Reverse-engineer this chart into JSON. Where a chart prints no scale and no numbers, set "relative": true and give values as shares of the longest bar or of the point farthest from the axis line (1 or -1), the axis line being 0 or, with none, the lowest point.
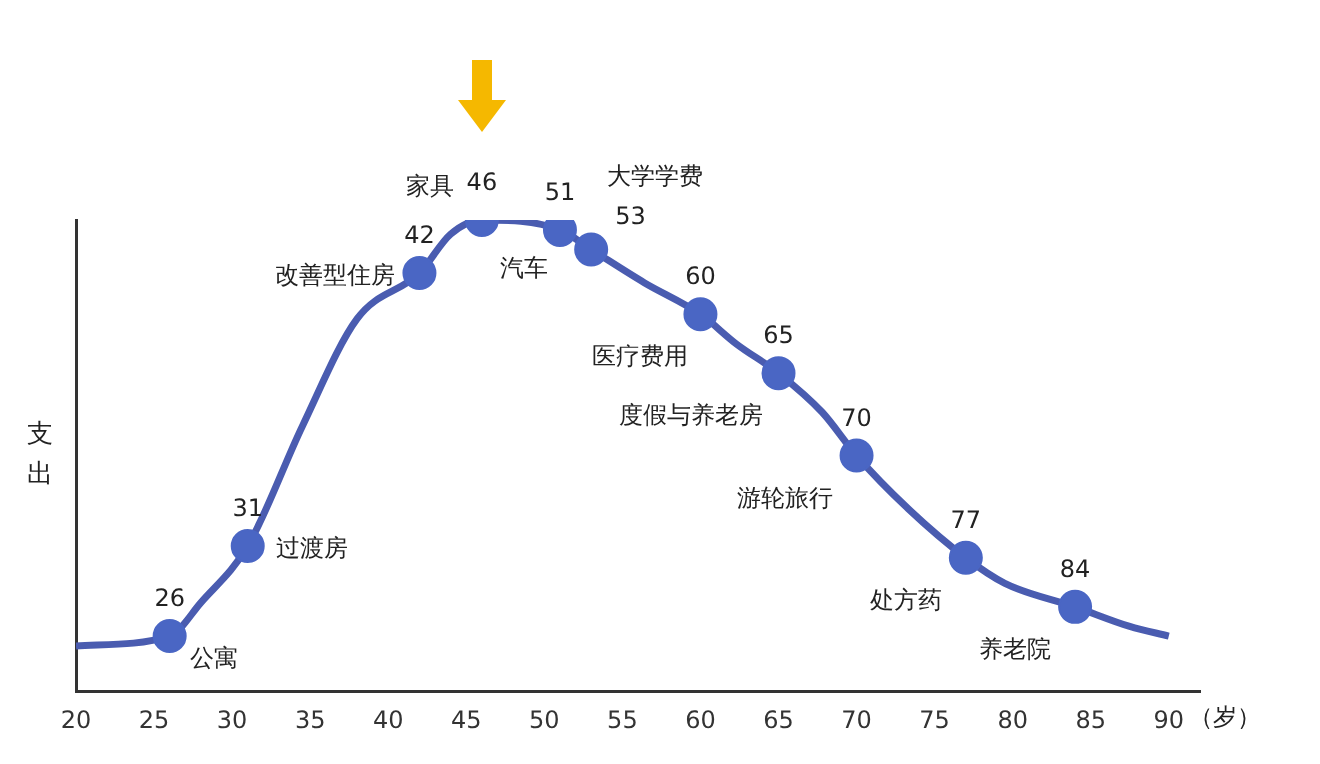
{
  "chart_data": {
    "type": "line",
    "relative": true,
    "ylabel": "支出",
    "xlabel": "（岁）",
    "xlim": [
      20,
      92
    ],
    "xticks": [
      20,
      25,
      30,
      35,
      40,
      45,
      50,
      55,
      60,
      65,
      70,
      75,
      80,
      85,
      90
    ],
    "grid": false,
    "legend": false,
    "series": [
      {
        "color": "#4a5cb0",
        "marker": "none",
        "x": [
          20,
          26,
          28,
          31,
          34.5,
          38,
          42,
          44,
          46,
          51,
          53,
          56.4,
          60,
          62.3,
          65,
          67.8,
          70,
          73.3,
          77,
          79.5,
          84,
          87.5,
          90
        ],
        "values": [
          0.096,
          0.117,
          0.188,
          0.308,
          0.5625,
          0.79,
          0.8875,
          0.97,
          1,
          0.979,
          0.9375,
          0.867,
          0.8,
          0.737,
          0.675,
          0.592,
          0.5,
          0.3875,
          0.283,
          0.229,
          0.179,
          0.1375,
          0.117
        ]
      },
      {
        "type": "scatter",
        "color": "#4a66c4",
        "marker": "circle",
        "x": [
          26,
          31,
          42,
          46,
          51,
          53,
          60,
          65,
          70,
          77,
          84
        ],
        "values": [
          0.117,
          0.308,
          0.8875,
          1,
          0.979,
          0.9375,
          0.8,
          0.675,
          0.5,
          0.283,
          0.179
        ]
      }
    ],
    "annotations": [
      {
        "text": "26",
        "x": 26,
        "y": 0.117
      },
      {
        "text": "31",
        "x": 31,
        "y": 0.308
      },
      {
        "text": "42",
        "x": 42,
        "y": 0.8875
      },
      {
        "text": "46",
        "x": 46,
        "y": 1
      },
      {
        "text": "51",
        "x": 51,
        "y": 0.979
      },
      {
        "text": "53",
        "x": 53,
        "y": 0.9375
      },
      {
        "text": "60",
        "x": 60,
        "y": 0.8
      },
      {
        "text": "65",
        "x": 65,
        "y": 0.675
      },
      {
        "text": "70",
        "x": 70,
        "y": 0.5
      },
      {
        "text": "77",
        "x": 77,
        "y": 0.283
      },
      {
        "text": "84",
        "x": 84,
        "y": 0.179
      },
      {
        "text": "公寓",
        "x": 26,
        "y": 0.117
      },
      {
        "text": "过渡房",
        "x": 31,
        "y": 0.308
      },
      {
        "text": "改善型住房",
        "x": 42,
        "y": 0.8875
      },
      {
        "text": "家具",
        "x": 46,
        "y": 1
      },
      {
        "text": "汽车",
        "x": 51,
        "y": 0.979
      },
      {
        "text": "大学学费",
        "x": 53,
        "y": 0.9375
      },
      {
        "text": "医疗费用",
        "x": 60,
        "y": 0.8
      },
      {
        "text": "度假与养老房",
        "x": 65,
        "y": 0.675
      },
      {
        "text": "游轮旅行",
        "x": 70,
        "y": 0.5
      },
      {
        "text": "处方药",
        "x": 77,
        "y": 0.283
      },
      {
        "text": "养老院",
        "x": 84,
        "y": 0.179
      }
    ]
  }
}
